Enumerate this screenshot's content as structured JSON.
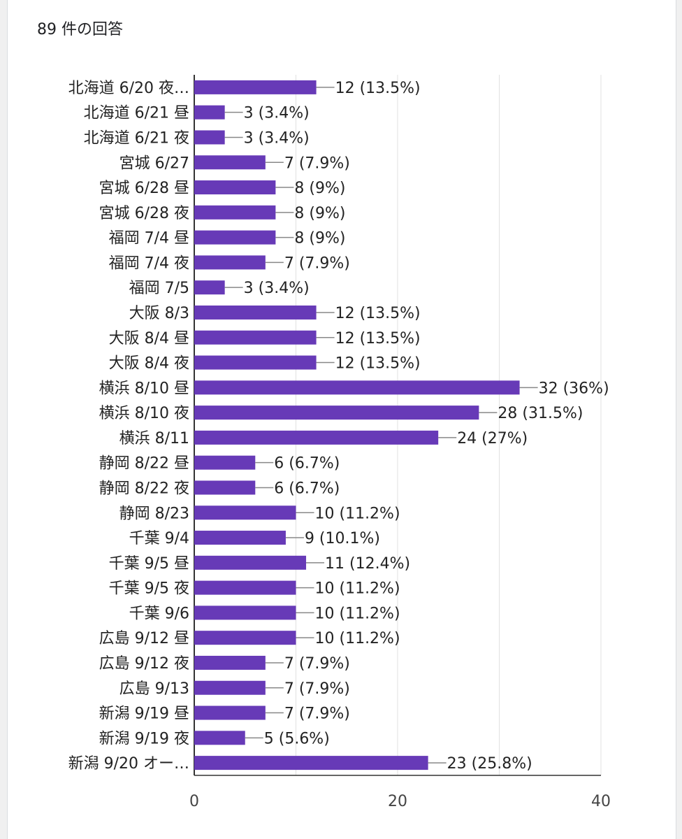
{
  "response_count": "89 件の回答",
  "colors": {
    "bar": "#673ab7",
    "grid": "#e0e0e0",
    "axis": "#333333",
    "leader": "#888888"
  },
  "chart_data": {
    "type": "bar",
    "orientation": "horizontal",
    "categories": [
      "北海道 6/20 夜…",
      "北海道 6/21 昼",
      "北海道 6/21 夜",
      "宮城 6/27",
      "宮城 6/28 昼",
      "宮城 6/28 夜",
      "福岡 7/4 昼",
      "福岡 7/4 夜",
      "福岡 7/5",
      "大阪 8/3",
      "大阪 8/4 昼",
      "大阪 8/4 夜",
      "横浜 8/10 昼",
      "横浜 8/10 夜",
      "横浜 8/11",
      "静岡 8/22 昼",
      "静岡 8/22 夜",
      "静岡 8/23",
      "千葉 9/4",
      "千葉 9/5 昼",
      "千葉 9/5 夜",
      "千葉 9/6",
      "広島 9/12 昼",
      "広島 9/12 夜",
      "広島 9/13",
      "新潟 9/19 昼",
      "新潟 9/19 夜",
      "新潟 9/20 オー…"
    ],
    "values": [
      12,
      3,
      3,
      7,
      8,
      8,
      8,
      7,
      3,
      12,
      12,
      12,
      32,
      28,
      24,
      6,
      6,
      10,
      9,
      11,
      10,
      10,
      10,
      7,
      7,
      7,
      5,
      23
    ],
    "data_labels": [
      "12 (13.5%)",
      "3 (3.4%)",
      "3 (3.4%)",
      "7 (7.9%)",
      "8 (9%)",
      "8 (9%)",
      "8 (9%)",
      "7 (7.9%)",
      "3 (3.4%)",
      "12 (13.5%)",
      "12 (13.5%)",
      "12 (13.5%)",
      "32 (36%)",
      "28 (31.5%)",
      "24 (27%)",
      "6 (6.7%)",
      "6 (6.7%)",
      "10 (11.2%)",
      "9 (10.1%)",
      "11 (12.4%)",
      "10 (11.2%)",
      "10 (11.2%)",
      "10 (11.2%)",
      "7 (7.9%)",
      "7 (7.9%)",
      "7 (7.9%)",
      "5 (5.6%)",
      "23 (25.8%)"
    ],
    "xlim": [
      0,
      40
    ],
    "xticks": [
      "0",
      "20",
      "40"
    ],
    "grid": true
  }
}
